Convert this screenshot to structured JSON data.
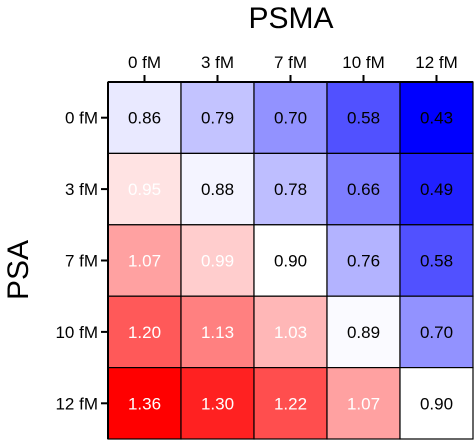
{
  "chart_data": {
    "type": "heatmap",
    "x_title": "PSMA",
    "y_title": "PSA",
    "x_categories": [
      "0 fM",
      "3 fM",
      "7 fM",
      "10 fM",
      "12 fM"
    ],
    "y_categories": [
      "0 fM",
      "3 fM",
      "7 fM",
      "10 fM",
      "12 fM"
    ],
    "values": [
      [
        0.86,
        0.79,
        0.7,
        0.58,
        0.43
      ],
      [
        0.95,
        0.88,
        0.78,
        0.66,
        0.49
      ],
      [
        1.07,
        0.99,
        0.9,
        0.76,
        0.58
      ],
      [
        1.2,
        1.13,
        1.03,
        0.89,
        0.7
      ],
      [
        1.36,
        1.3,
        1.22,
        1.07,
        0.9
      ]
    ],
    "labels": [
      [
        "0.86",
        "0.79",
        "0.70",
        "0.58",
        "0.43"
      ],
      [
        "0.95",
        "0.88",
        "0.78",
        "0.66",
        "0.49"
      ],
      [
        "1.07",
        "0.99",
        "0.90",
        "0.76",
        "0.58"
      ],
      [
        "1.20",
        "1.13",
        "1.03",
        "0.89",
        "0.70"
      ],
      [
        "1.36",
        "1.30",
        "1.22",
        "1.07",
        "0.90"
      ]
    ],
    "color_scale": {
      "low_color": "#0000ff",
      "mid_color": "#ffffff",
      "high_color": "#ff0000",
      "low_value": 0.43,
      "mid_value": 0.9,
      "high_value": 1.36
    },
    "axis_color": "#000000"
  }
}
